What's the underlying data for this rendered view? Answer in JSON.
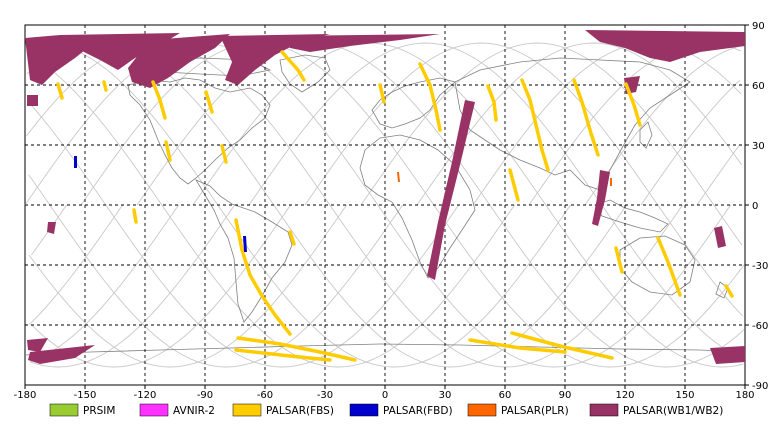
{
  "map": {
    "lon_ticks": [
      "-180",
      "-150",
      "-120",
      "-90",
      "-60",
      "-30",
      "0",
      "30",
      "60",
      "90",
      "120",
      "150",
      "180"
    ],
    "lat_ticks": [
      "90",
      "60",
      "30",
      "0",
      "-30",
      "-60",
      "-90"
    ],
    "grid": "dashed",
    "projection": "equirectangular"
  },
  "legend": [
    {
      "label": "PRSIM",
      "color": "#99cc33"
    },
    {
      "label": "AVNIR-2",
      "color": "#ff33ff"
    },
    {
      "label": "PALSAR(FBS)",
      "color": "#ffcc00"
    },
    {
      "label": "PALSAR(FBD)",
      "color": "#0000cc"
    },
    {
      "label": "PALSAR(PLR)",
      "color": "#ff6600"
    },
    {
      "label": "PALSAR(WB1/WB2)",
      "color": "#993366"
    }
  ],
  "colors": {
    "orbit": "#c8c8c8",
    "coast": "#808080",
    "fbs": "#ffcc00",
    "wb": "#993366",
    "fbd": "#0000cc",
    "plr": "#ff6600"
  }
}
